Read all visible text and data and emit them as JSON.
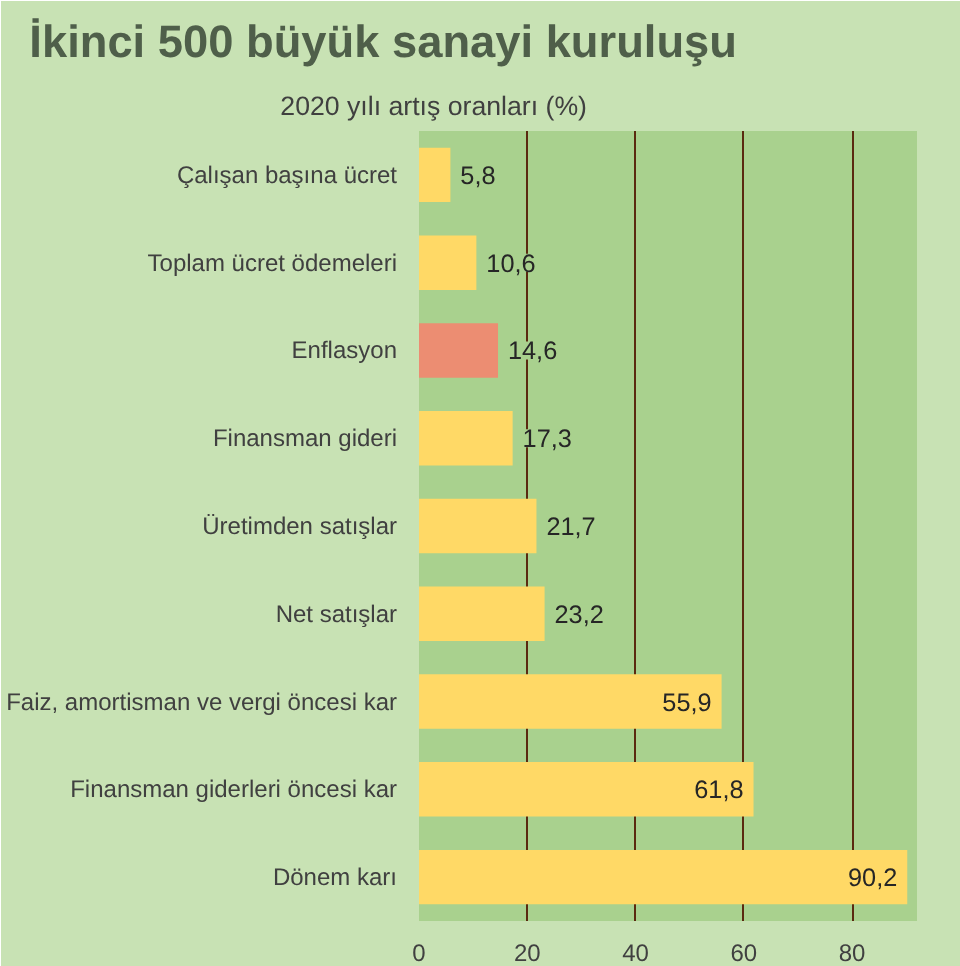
{
  "chart_data": {
    "type": "bar",
    "orientation": "horizontal",
    "title": "İkinci 500 büyük sanayi kuruluşu",
    "subtitle": "2020 yılı artış oranları (%)",
    "categories": [
      "Çalışan başına ücret",
      "Toplam ücret ödemeleri",
      "Enflasyon",
      "Finansman gideri",
      "Üretimden satışlar",
      "Net satışlar",
      "Faiz, amortisman ve vergi öncesi kar",
      "Finansman giderleri öncesi kar",
      "Dönem karı"
    ],
    "values": [
      5.8,
      10.6,
      14.6,
      17.3,
      21.7,
      23.2,
      55.9,
      61.8,
      90.2
    ],
    "value_labels": [
      "5,8",
      "10,6",
      "14,6",
      "17,3",
      "21,7",
      "23,2",
      "55,9",
      "61,8",
      "90,2"
    ],
    "colors": [
      "#ffd966",
      "#ffd966",
      "#ec8d72",
      "#ffd966",
      "#ffd966",
      "#ffd966",
      "#ffd966",
      "#ffd966",
      "#ffd966"
    ],
    "xlim": [
      0,
      92
    ],
    "xticks": [
      0,
      20,
      40,
      60,
      80
    ],
    "grid": "x"
  }
}
